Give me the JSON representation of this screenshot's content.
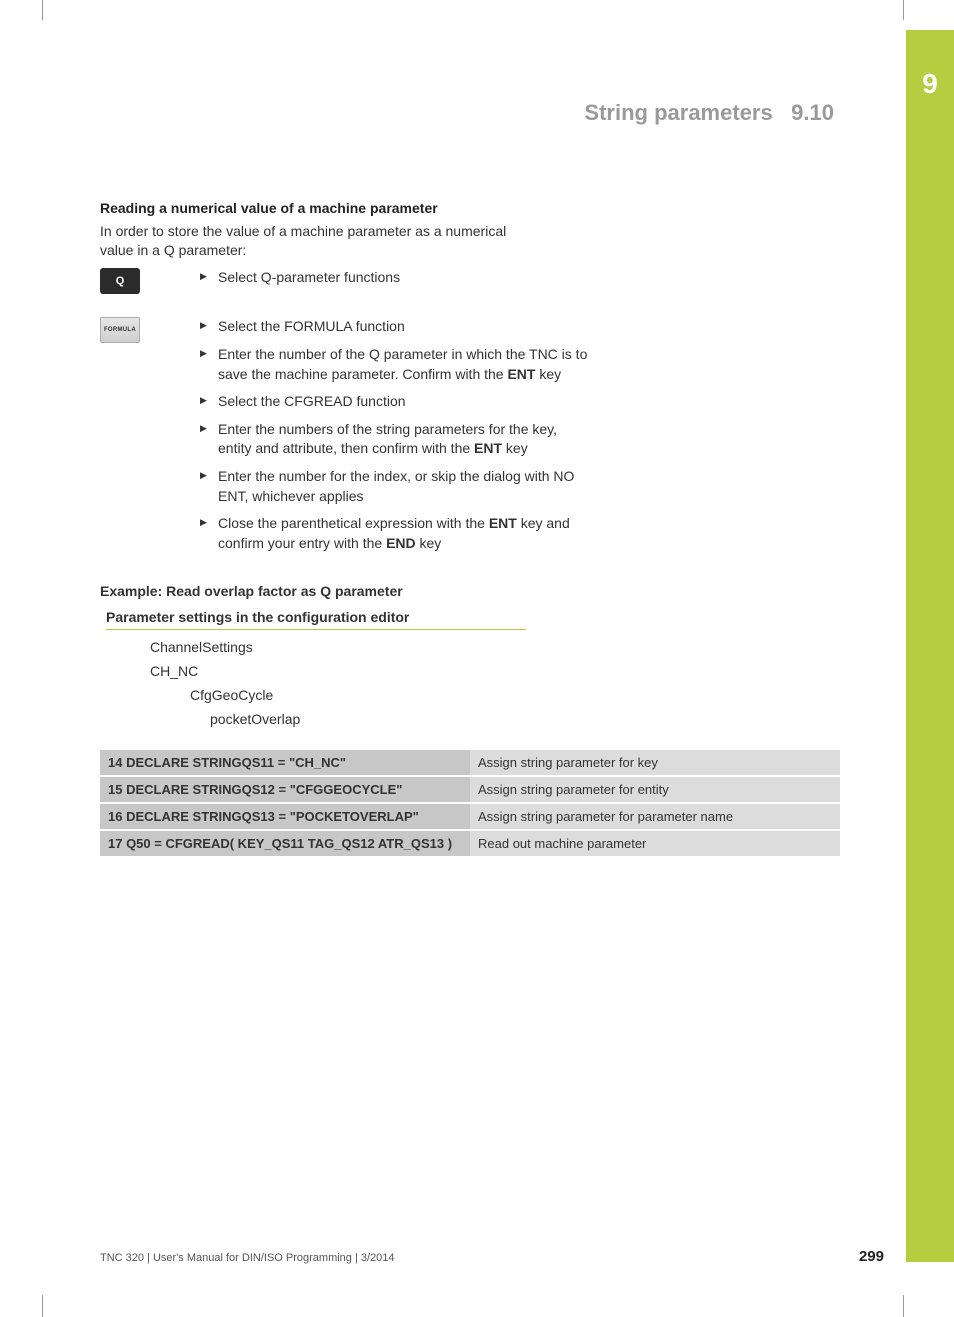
{
  "chapter_number": "9",
  "header": {
    "title": "String parameters",
    "section": "9.10"
  },
  "section_heading": "Reading a numerical value of a machine parameter",
  "intro": "In order to store the value of a machine parameter as a numerical value in a Q parameter:",
  "buttons": {
    "q_key": "Q",
    "formula_key": "FORMULA"
  },
  "steps_q": [
    "Select Q-parameter functions"
  ],
  "steps_formula": [
    "Select the FORMULA function",
    "Enter the number of the Q parameter in which the TNC is to save the machine parameter. Confirm with the <b>ENT</b> key",
    "Select the CFGREAD function",
    "Enter the numbers of the string parameters for the key, entity and attribute, then confirm with the <b>ENT</b> key",
    "Enter the number for the index, or skip the dialog with NO ENT, whichever applies",
    "Close the parenthetical expression with the <b>ENT</b> key and confirm your entry with the <b>END</b> key"
  ],
  "example_heading": "Example: Read overlap factor as Q parameter",
  "param_settings_heading": "Parameter settings in the configuration editor",
  "cfg_tree": {
    "l1": "ChannelSettings",
    "l2": "CH_NC",
    "l3": "CfgGeoCycle",
    "l4": "pocketOverlap"
  },
  "code_table": [
    {
      "code": "14 DECLARE STRINGQS11 = \"CH_NC\"",
      "desc": "Assign string parameter for key"
    },
    {
      "code": "15 DECLARE STRINGQS12 = \"CFGGEOCYCLE\"",
      "desc": "Assign string parameter for entity"
    },
    {
      "code": "16 DECLARE STRINGQS13 = \"POCKETOVERLAP\"",
      "desc": "Assign string parameter for parameter name"
    },
    {
      "code": "17 Q50 = CFGREAD( KEY_QS11 TAG_QS12 ATR_QS13 )",
      "desc": "Read out machine parameter"
    }
  ],
  "footer": {
    "doc": "TNC 320 | User's Manual for DIN/ISO Programming | 3/2014",
    "page": "299"
  },
  "colors": {
    "accent": "#b5cd3f",
    "header_gray": "#9a9a9a",
    "table_dark": "#c7c7c7",
    "table_light": "#dcdcdc",
    "key_dark": "#2b2b2b"
  }
}
